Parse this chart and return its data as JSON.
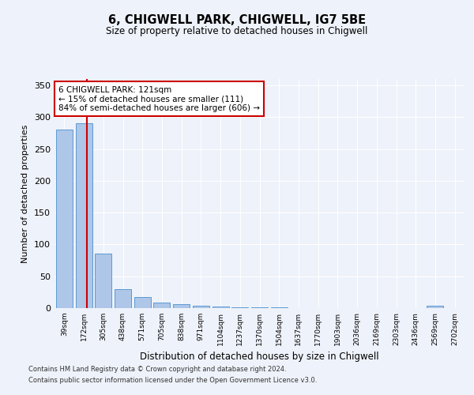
{
  "title1": "6, CHIGWELL PARK, CHIGWELL, IG7 5BE",
  "title2": "Size of property relative to detached houses in Chigwell",
  "xlabel": "Distribution of detached houses by size in Chigwell",
  "ylabel": "Number of detached properties",
  "bar_labels": [
    "39sqm",
    "172sqm",
    "305sqm",
    "438sqm",
    "571sqm",
    "705sqm",
    "838sqm",
    "971sqm",
    "1104sqm",
    "1237sqm",
    "1370sqm",
    "1504sqm",
    "1637sqm",
    "1770sqm",
    "1903sqm",
    "2036sqm",
    "2169sqm",
    "2303sqm",
    "2436sqm",
    "2569sqm",
    "2702sqm"
  ],
  "bar_values": [
    280,
    290,
    86,
    30,
    18,
    9,
    6,
    4,
    2,
    1,
    1,
    1,
    0,
    0,
    0,
    0,
    0,
    0,
    0,
    4,
    0
  ],
  "bar_color": "#aec6e8",
  "bar_edgecolor": "#5b9bd5",
  "property_line_x": 1.15,
  "annotation_title": "6 CHIGWELL PARK: 121sqm",
  "annotation_line1": "← 15% of detached houses are smaller (111)",
  "annotation_line2": "84% of semi-detached houses are larger (606) →",
  "annotation_box_color": "#ffffff",
  "annotation_box_edgecolor": "#cc0000",
  "vline_color": "#cc0000",
  "ylim": [
    0,
    360
  ],
  "yticks": [
    0,
    50,
    100,
    150,
    200,
    250,
    300,
    350
  ],
  "footer1": "Contains HM Land Registry data © Crown copyright and database right 2024.",
  "footer2": "Contains public sector information licensed under the Open Government Licence v3.0.",
  "background_color": "#eef2fa",
  "grid_color": "#ffffff"
}
